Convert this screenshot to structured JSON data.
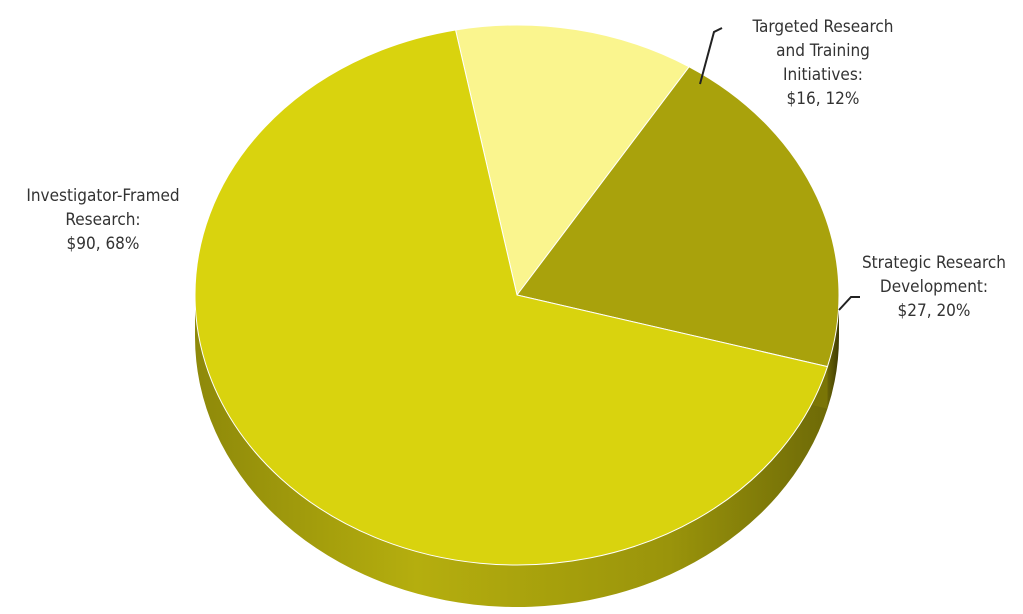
{
  "chart_data": {
    "type": "pie",
    "title": "",
    "slices": [
      {
        "name": "Targeted Research and Training Initiatives",
        "value": 16,
        "percent": 12,
        "value_label": "$16, 12%",
        "label_lines": [
          "Targeted Research",
          "and Training",
          "Initiatives:",
          "$16, 12%"
        ],
        "color": "#FAF58E"
      },
      {
        "name": "Strategic Research Development",
        "value": 27,
        "percent": 20,
        "value_label": "$27, 20%",
        "label_lines": [
          "Strategic Research",
          "Development:",
          "$27, 20%"
        ],
        "color": "#A9A20C"
      },
      {
        "name": "Investigator-Framed Research",
        "value": 90,
        "percent": 68,
        "value_label": "$90, 68%",
        "label_lines": [
          "Investigator-Framed",
          "Research:",
          "$90, 68%"
        ],
        "color": "#D9D30E"
      }
    ],
    "units": "$",
    "style": "3d",
    "legend": "none"
  }
}
